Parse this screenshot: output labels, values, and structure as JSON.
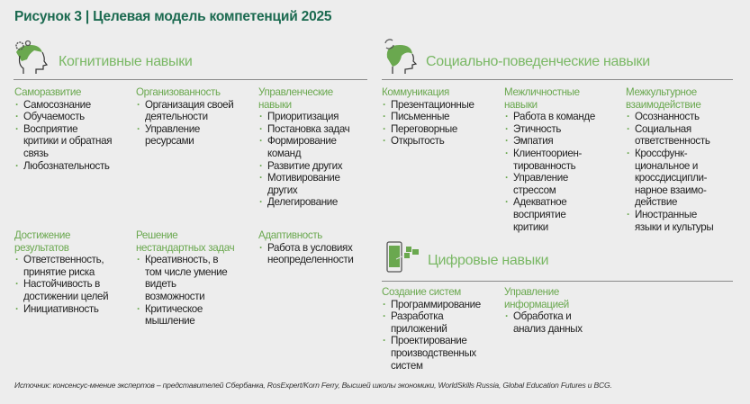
{
  "title": "Рисунок 3 | Целевая модель компетенций 2025",
  "colors": {
    "title": "#1b6a50",
    "section": "#7ab865",
    "group": "#6aa84f",
    "background": "#ededed"
  },
  "sections": [
    {
      "heading": "Когнитивные навыки",
      "icon": "head-with-gears-icon",
      "groups": [
        {
          "title": "Саморазвитие",
          "items": [
            "Самосознание",
            "Обучаемость",
            "Восприятие\nкритики и обратная\nсвязь",
            "Любознательность"
          ]
        },
        {
          "title": "Организованность",
          "items": [
            "Организация своей\nдеятельности",
            "Управление\nресурсами"
          ]
        },
        {
          "title": "Управленческие\nнавыки",
          "items": [
            "Приоритизация",
            "Постановка задач",
            "Формирование\nкоманд",
            "Развитие других",
            "Мотивирование\nдругих",
            "Делегирование"
          ]
        },
        {
          "title": "Достижение\nрезультатов",
          "items": [
            "Ответственность,\nпринятие риска",
            "Настойчивость в\nдостижении целей",
            "Инициативность"
          ]
        },
        {
          "title": "Решение\nнестандартных задач",
          "items": [
            "Креативность, в\nтом числе умение\nвидеть\nвозможности",
            "Критическое\nмышление"
          ]
        },
        {
          "title": "Адаптивность",
          "items": [
            "Работа в условиях\nнеопределенности"
          ]
        }
      ]
    },
    {
      "heading": "Социально-поведенческие навыки",
      "icon": "head-with-cycle-icon",
      "groups": [
        {
          "title": "Коммуникация",
          "items": [
            "Презентационные",
            "Письменные",
            "Переговорные",
            "Открытость"
          ]
        },
        {
          "title": "Межличностные\nнавыки",
          "items": [
            "Работа в команде",
            "Этичность",
            "Эмпатия",
            "Клиентоориен-\nтированность",
            "Управление\nстрессом",
            "Адекватное\nвосприятие\nкритики"
          ]
        },
        {
          "title": "Межкультурное\nвзаимодействие",
          "items": [
            "Осознанность",
            "Социальная\nответственность",
            "Кроссфунк-\nциональное и\nкроссдисципли-\nнарное взаимо-\nдействие",
            "Иностранные\nязыки и культуры"
          ]
        }
      ]
    },
    {
      "heading": "Цифровые навыки",
      "icon": "smartphone-icon",
      "groups": [
        {
          "title": "Создание систем",
          "items": [
            "Программирование",
            "Разработка\nприложений",
            "Проектирование\nпроизводственных\nсистем"
          ]
        },
        {
          "title": "Управление\nинформацией",
          "items": [
            "Обработка и\nанализ данных"
          ]
        }
      ]
    }
  ],
  "source": "Источник: консенсус-мнение экспертов – представителей Сбербанка, RosExpert/Korn Ferry, Высшей школы экономики, WorldSkills Russia, Global Education Futures и BCG."
}
